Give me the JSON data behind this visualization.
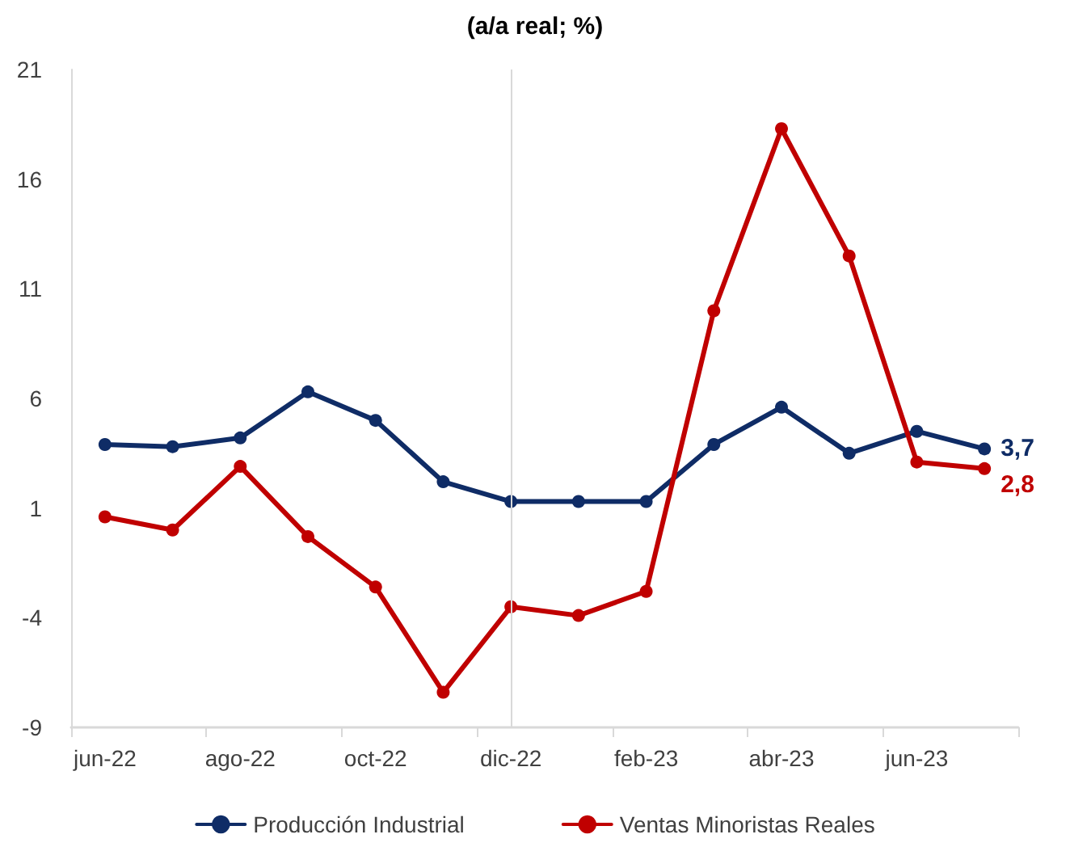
{
  "chart_data": {
    "type": "line",
    "title": "(a/a real; %)",
    "categories": [
      "jun-22",
      null,
      "ago-22",
      null,
      "oct-22",
      null,
      "dic-22",
      null,
      "feb-23",
      null,
      "abr-23",
      null,
      "jun-23",
      null
    ],
    "series": [
      {
        "name": "Producción Industrial",
        "color": "#0f2c66",
        "values": [
          3.9,
          3.8,
          4.2,
          6.3,
          5.0,
          2.2,
          1.3,
          1.3,
          1.3,
          3.9,
          5.6,
          3.5,
          4.5,
          3.7
        ],
        "value_labels": [
          null,
          null,
          null,
          null,
          null,
          null,
          null,
          null,
          null,
          null,
          null,
          null,
          null,
          "3,7"
        ]
      },
      {
        "name": "Ventas Minoristas Reales",
        "color": "#c00000",
        "values": [
          0.6,
          0.0,
          2.9,
          -0.3,
          -2.6,
          -7.4,
          -3.5,
          -3.9,
          -2.8,
          10.0,
          18.3,
          12.5,
          3.1,
          2.8
        ],
        "value_labels": [
          null,
          null,
          null,
          null,
          null,
          null,
          null,
          null,
          null,
          null,
          null,
          null,
          null,
          "2,8"
        ]
      }
    ],
    "ylim": [
      -9,
      21
    ],
    "yticks": [
      -9,
      -4,
      1,
      6,
      11,
      16,
      21
    ],
    "ref_lines": [
      {
        "axis": "x",
        "value": "dic-22",
        "color": "#d9d9d9"
      }
    ],
    "grid": false,
    "legend": "bottom",
    "marker": "circle",
    "line_style": "solid"
  }
}
